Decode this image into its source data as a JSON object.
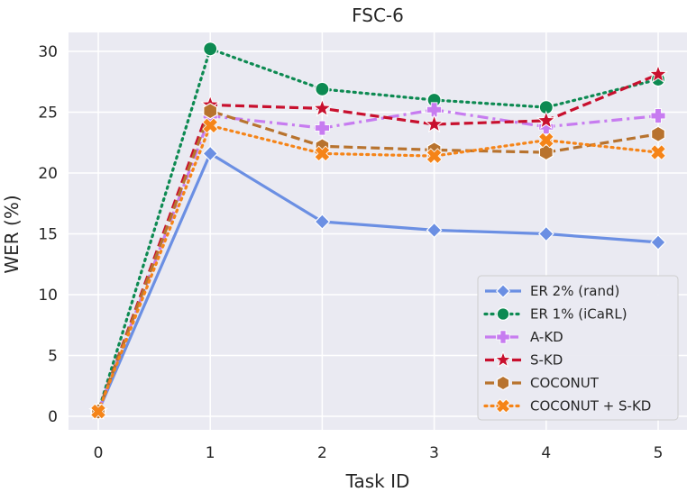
{
  "chart_data": {
    "type": "line",
    "title": "FSC-6",
    "xlabel": "Task ID",
    "ylabel": "WER (%)",
    "x": [
      0,
      1,
      2,
      3,
      4,
      5
    ],
    "xlim": [
      -0.2,
      5.2
    ],
    "ylim": [
      -1.0,
      32.0
    ],
    "xticks": [
      "0",
      "1",
      "2",
      "3",
      "4",
      "5"
    ],
    "yticks": [
      "0",
      "5",
      "10",
      "15",
      "20",
      "25",
      "30"
    ],
    "grid": true,
    "legend_position": "bottom-right",
    "series": [
      {
        "name": "ER 2% (rand)",
        "color": "#6b8fe3",
        "dash": "solid",
        "marker": "diamond",
        "values": [
          0.4,
          21.6,
          16.0,
          15.3,
          15.0,
          14.3
        ]
      },
      {
        "name": "ER 1% (iCaRL)",
        "color": "#0d8a52",
        "dash": "dotted",
        "marker": "circle",
        "values": [
          0.4,
          30.2,
          26.9,
          26.0,
          25.4,
          27.7
        ]
      },
      {
        "name": "A-KD",
        "color": "#c77cf0",
        "dash": "dashdot",
        "marker": "plus",
        "values": [
          0.4,
          24.7,
          23.7,
          25.2,
          23.8,
          24.7
        ]
      },
      {
        "name": "S-KD",
        "color": "#c8102e",
        "dash": "dashed",
        "marker": "star",
        "values": [
          0.4,
          25.6,
          25.3,
          24.0,
          24.3,
          28.1
        ]
      },
      {
        "name": "COCONUT",
        "color": "#b8732e",
        "dash": "dashed",
        "marker": "hexagon",
        "values": [
          0.4,
          25.1,
          22.2,
          21.9,
          21.7,
          23.2
        ]
      },
      {
        "name": "COCONUT + S-KD",
        "color": "#f58418",
        "dash": "dotted",
        "marker": "x",
        "values": [
          0.4,
          23.9,
          21.6,
          21.4,
          22.7,
          21.7
        ]
      }
    ]
  }
}
